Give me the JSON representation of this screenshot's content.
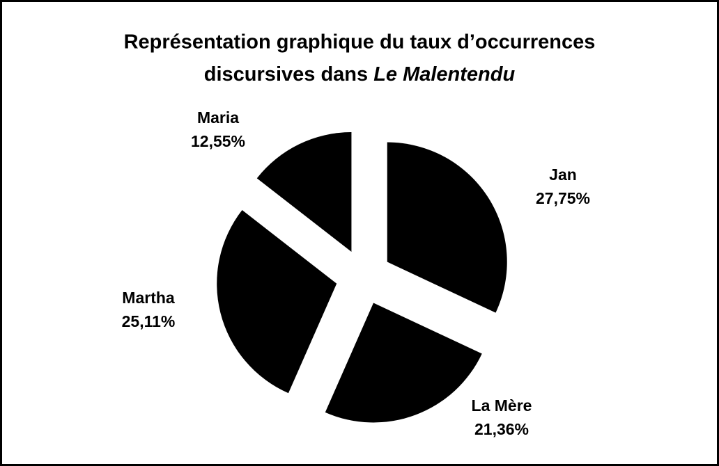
{
  "chart_data": {
    "type": "pie",
    "title": [
      "Représentation graphique du taux d’occurrences",
      "discursives dans ",
      "Le Malentendu"
    ],
    "categories": [
      "Jan",
      "La Mère",
      "Martha",
      "Maria"
    ],
    "values": [
      27.75,
      21.36,
      25.11,
      12.55
    ],
    "value_labels": [
      "27,75%",
      "21,36%",
      "25,11%",
      "12,55%"
    ],
    "color": "#000000"
  }
}
